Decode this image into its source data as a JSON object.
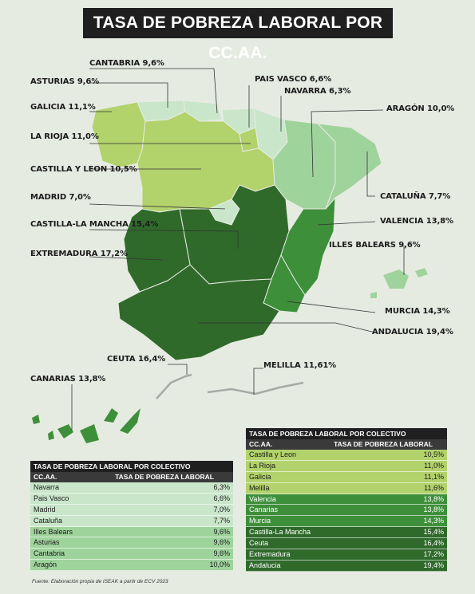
{
  "title": "TASA DE POBREZA LABORAL POR CC.AA.",
  "colors": {
    "very_light": "#c9e6cb",
    "light": "#9fd39c",
    "lime": "#b2d26b",
    "mid": "#3e8f3a",
    "dark": "#2f6a2b",
    "background": "#e6ebe2"
  },
  "map_labels": [
    {
      "id": "cantabria",
      "text": "CANTABRIA 9,6%"
    },
    {
      "id": "asturias",
      "text": "ASTURIAS 9,6%"
    },
    {
      "id": "paisvasco",
      "text": "PAIS VASCO 6,6%"
    },
    {
      "id": "navarra",
      "text": "NAVARRA 6,3%"
    },
    {
      "id": "galicia",
      "text": "GALICIA 11,1%"
    },
    {
      "id": "aragon",
      "text": "ARAGÓN 10,0%"
    },
    {
      "id": "larioja",
      "text": "LA RIOJA 11,0%"
    },
    {
      "id": "castillaleon",
      "text": "CASTILLA Y LEON 10,5%"
    },
    {
      "id": "madrid",
      "text": "MADRID 7,0%"
    },
    {
      "id": "cataluna",
      "text": "CATALUÑA 7,7%"
    },
    {
      "id": "castillamancha",
      "text": "CASTILLA-LA MANCHA 15,4%"
    },
    {
      "id": "valencia",
      "text": "VALENCIA 13,8%"
    },
    {
      "id": "extremadura",
      "text": "EXTREMADURA 17,2%"
    },
    {
      "id": "baleares",
      "text": "ILLES BALEARS 9,6%"
    },
    {
      "id": "murcia",
      "text": "MURCIA 14,3%"
    },
    {
      "id": "andalucia",
      "text": "ANDALUCIA 19,4%"
    },
    {
      "id": "ceuta",
      "text": "CEUTA 16,4%"
    },
    {
      "id": "melilla",
      "text": "MELILLA 11,61%"
    },
    {
      "id": "canarias",
      "text": "CANARIAS 13,8%"
    }
  ],
  "table_left": {
    "title": "TASA DE POBREZA LABORAL POR COLECTIVO",
    "col1": "CC.AA.",
    "col2": "TASA DE POBREZA LABORAL",
    "rows": [
      {
        "name": "Navarra",
        "value": "6,3%",
        "tone": "very_light"
      },
      {
        "name": "Pais Vasco",
        "value": "6,6%",
        "tone": "very_light"
      },
      {
        "name": "Madrid",
        "value": "7,0%",
        "tone": "very_light"
      },
      {
        "name": "Cataluña",
        "value": "7,7%",
        "tone": "very_light"
      },
      {
        "name": "Illes Balears",
        "value": "9,6%",
        "tone": "light"
      },
      {
        "name": "Asturias",
        "value": "9,6%",
        "tone": "light"
      },
      {
        "name": "Cantabria",
        "value": "9,6%",
        "tone": "light"
      },
      {
        "name": "Aragón",
        "value": "10,0%",
        "tone": "light"
      }
    ]
  },
  "table_right": {
    "title": "TASA DE POBREZA LABORAL POR COLECTIVO",
    "col1": "CC.AA.",
    "col2": "TASA DE POBREZA LABORAL",
    "rows": [
      {
        "name": "Castilla y Leon",
        "value": "10,5%",
        "tone": "lime"
      },
      {
        "name": "La Rioja",
        "value": "11,0%",
        "tone": "lime"
      },
      {
        "name": "Galicia",
        "value": "11,1%",
        "tone": "lime"
      },
      {
        "name": "Melilla",
        "value": "11,6%",
        "tone": "lime"
      },
      {
        "name": "Valencia",
        "value": "13,8%",
        "tone": "mid"
      },
      {
        "name": "Canarias",
        "value": "13,8%",
        "tone": "mid"
      },
      {
        "name": "Murcia",
        "value": "14,3%",
        "tone": "mid"
      },
      {
        "name": "Castilla-La Mancha",
        "value": "15,4%",
        "tone": "dark"
      },
      {
        "name": "Ceuta",
        "value": "16,4%",
        "tone": "dark"
      },
      {
        "name": "Extremadura",
        "value": "17,2%",
        "tone": "dark"
      },
      {
        "name": "Andalucia",
        "value": "19,4%",
        "tone": "dark"
      }
    ]
  },
  "source": "Fuente: Elaboración propia de ISEAK a partir de ECV 2023"
}
